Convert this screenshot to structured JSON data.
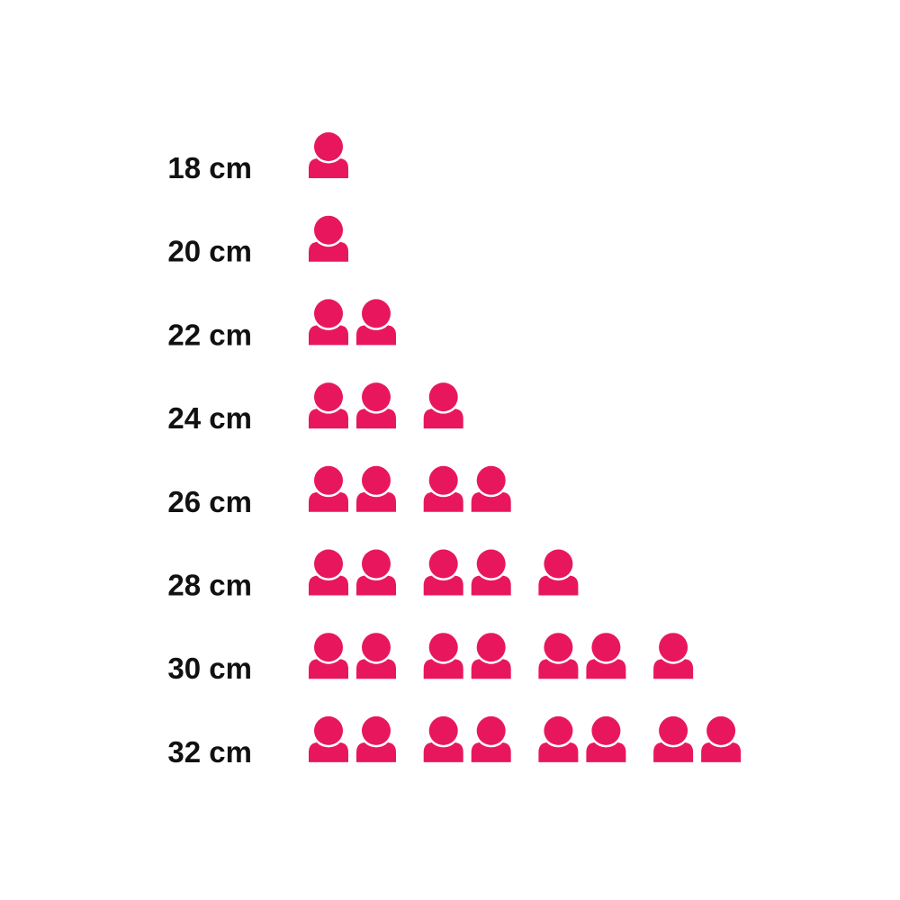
{
  "chart_data": {
    "type": "pictogram",
    "categories": [
      "18 cm",
      "20 cm",
      "22 cm",
      "24 cm",
      "26 cm",
      "28 cm",
      "30 cm",
      "32 cm"
    ],
    "values": [
      1,
      1,
      2,
      3,
      4,
      5,
      7,
      8
    ],
    "icon": "person-icon",
    "icon_color": "#E8175D",
    "label_color": "#111111"
  }
}
